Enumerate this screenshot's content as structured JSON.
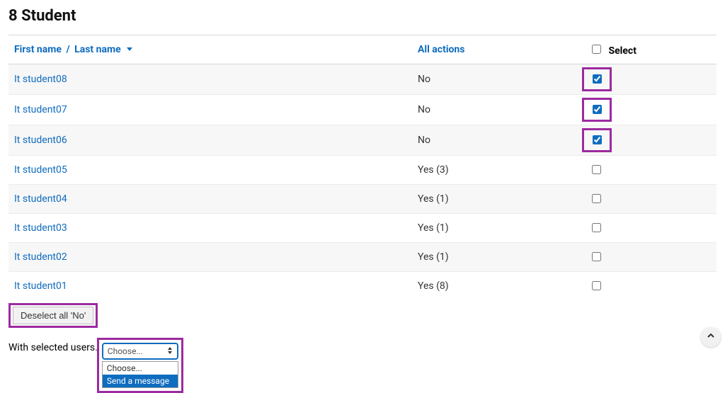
{
  "colors": {
    "link": "#0f6cbf",
    "highlight_border": "#9c2aa0",
    "row_alt_bg": "#f7f7f7",
    "row_bg": "#ffffff",
    "border": "#d6d6d6"
  },
  "page_title": "8 Student",
  "header": {
    "first_name": "First name",
    "separator": "/",
    "last_name": "Last name",
    "all_actions": "All actions",
    "select": "Select"
  },
  "rows": [
    {
      "name": "It student08",
      "actions": "No",
      "checked": true,
      "highlight": true
    },
    {
      "name": "It student07",
      "actions": "No",
      "checked": true,
      "highlight": true
    },
    {
      "name": "It student06",
      "actions": "No",
      "checked": true,
      "highlight": true
    },
    {
      "name": "It student05",
      "actions": "Yes (3)",
      "checked": false,
      "highlight": false
    },
    {
      "name": "It student04",
      "actions": "Yes (1)",
      "checked": false,
      "highlight": false
    },
    {
      "name": "It student03",
      "actions": "Yes (1)",
      "checked": false,
      "highlight": false
    },
    {
      "name": "It student02",
      "actions": "Yes (1)",
      "checked": false,
      "highlight": false
    },
    {
      "name": "It student01",
      "actions": "Yes (8)",
      "checked": false,
      "highlight": false
    }
  ],
  "deselect_label": "Deselect all 'No'",
  "with_selected_label": "With selected users.",
  "dropdown": {
    "current": "Choose...",
    "options": [
      {
        "label": "Choose...",
        "selected": false
      },
      {
        "label": "Send a message",
        "selected": true
      }
    ]
  }
}
